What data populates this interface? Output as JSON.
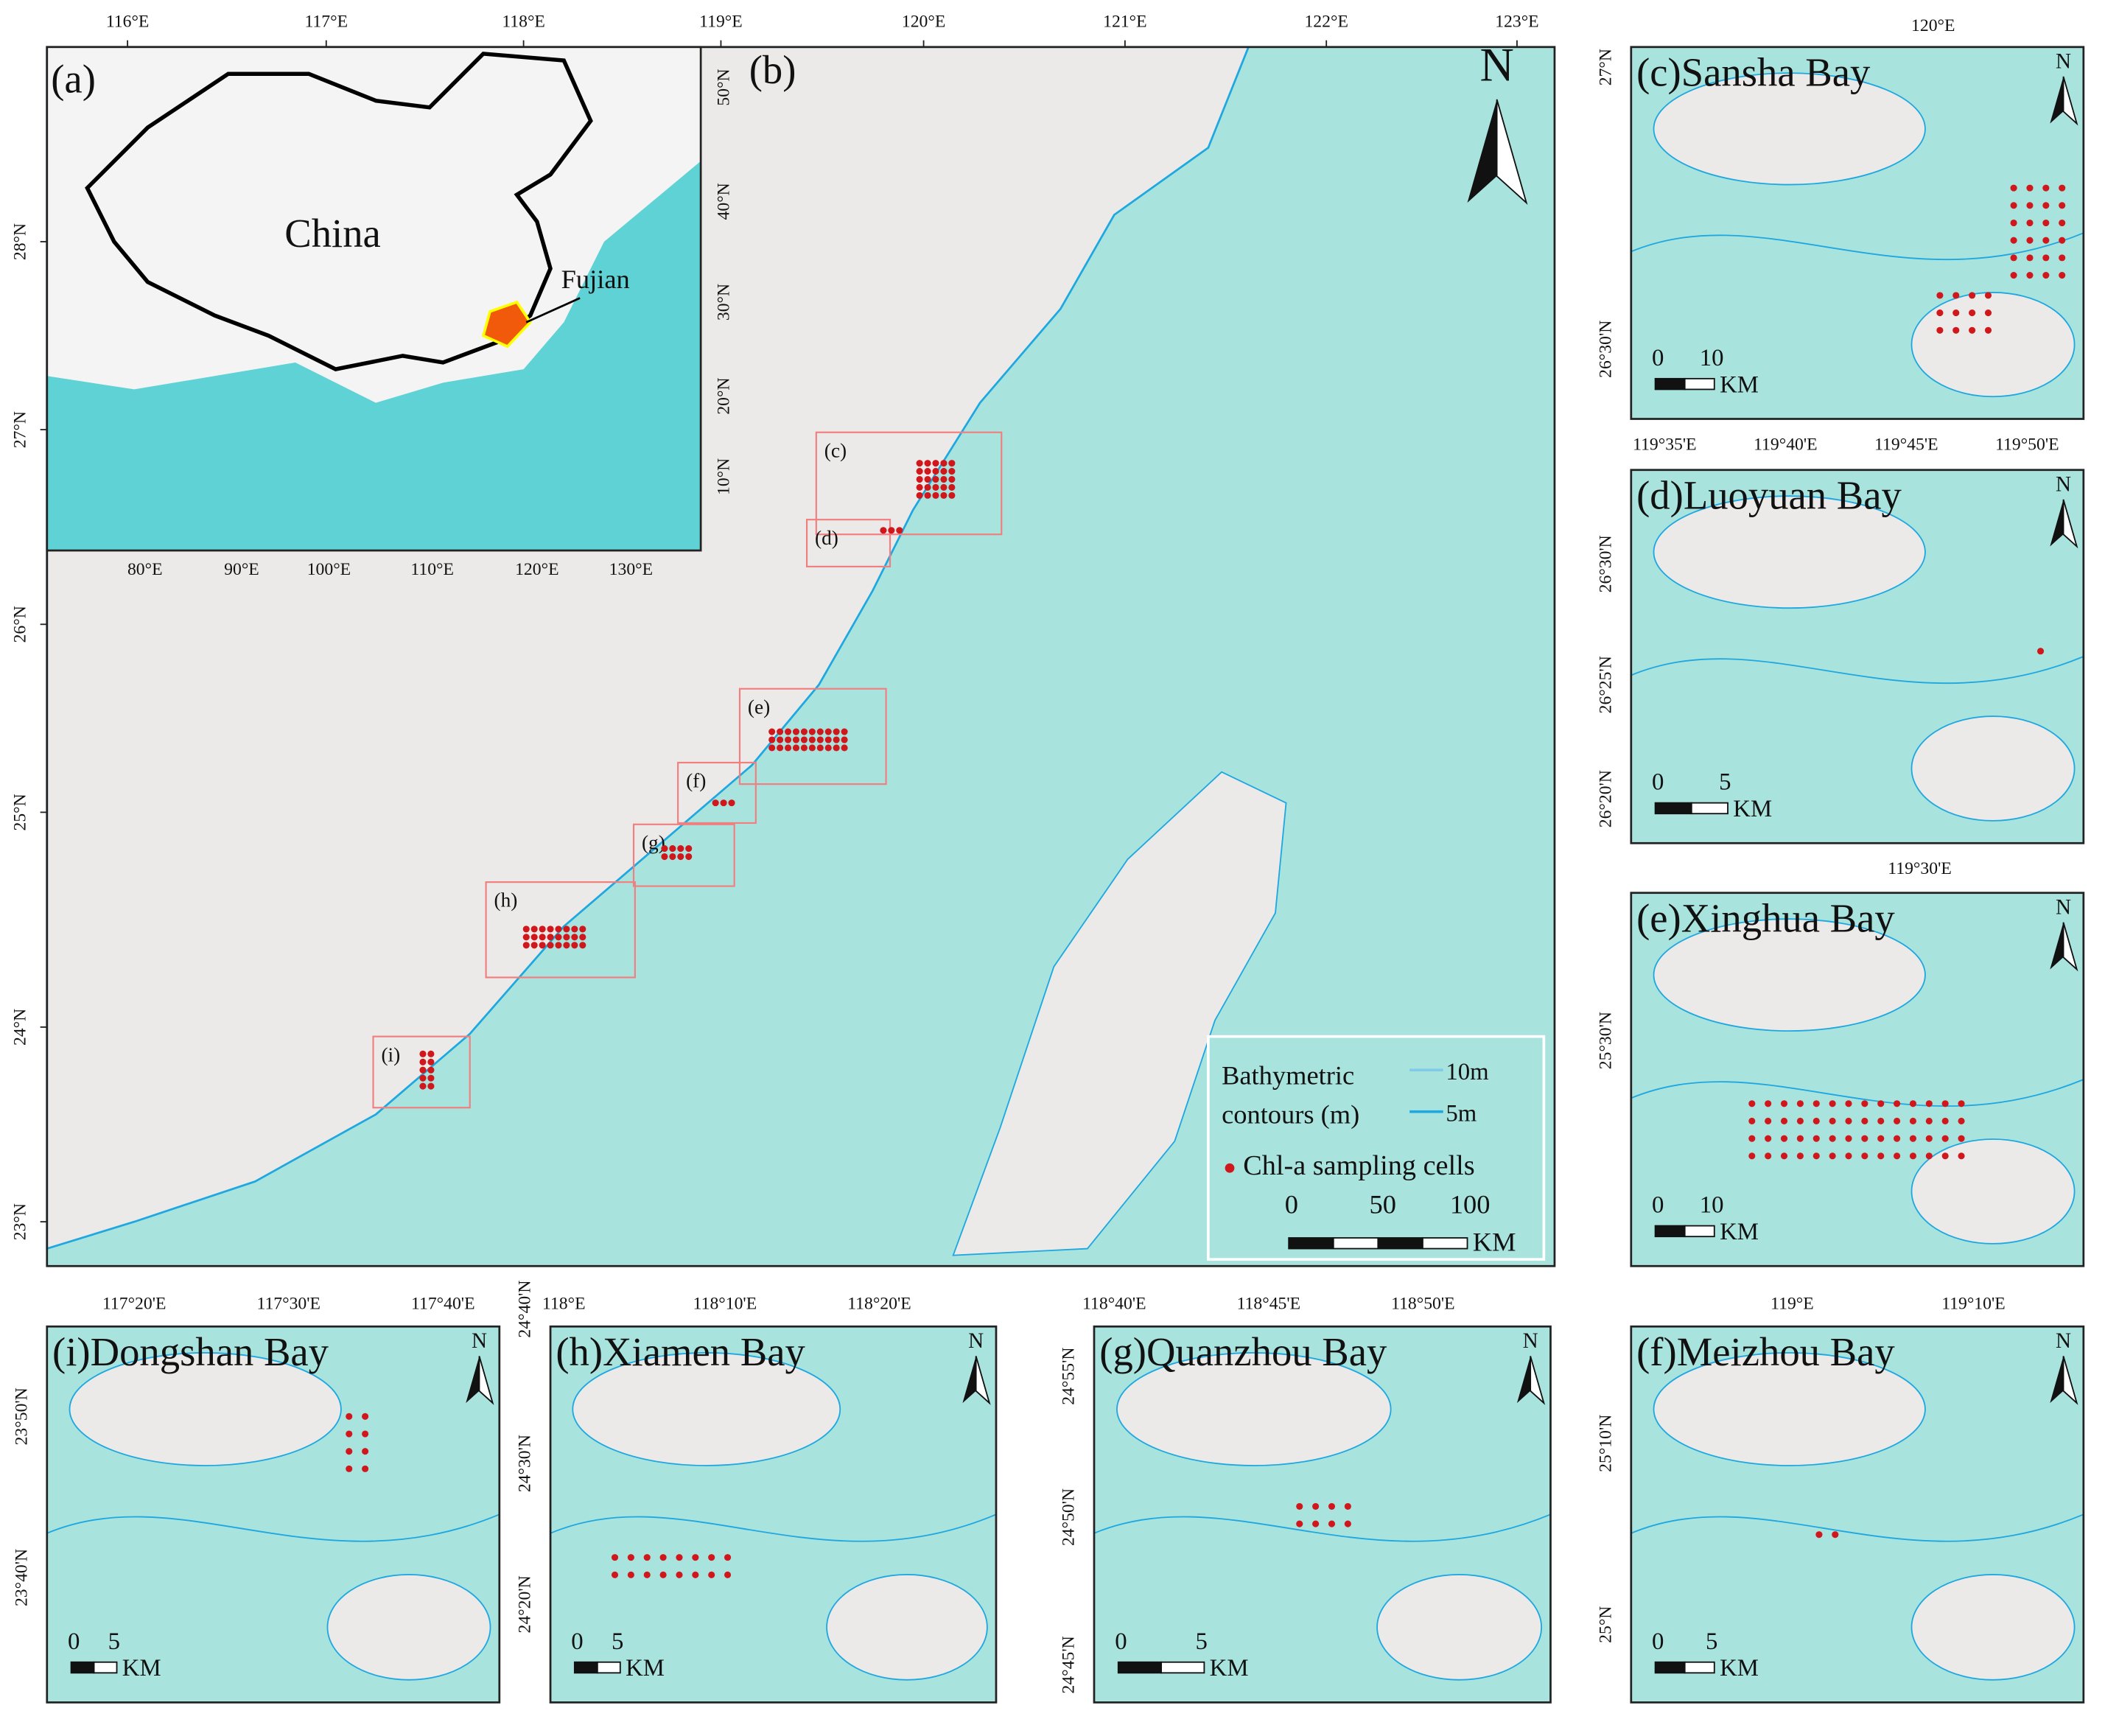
{
  "main_map": {
    "label": "(b)",
    "north": "N",
    "x_ticks": [
      "116°E",
      "117°E",
      "118°E",
      "119°E",
      "120°E",
      "121°E",
      "122°E",
      "123°E"
    ],
    "y_ticks": [
      "28°N",
      "27°N",
      "26°N",
      "25°N",
      "24°N",
      "23°N"
    ],
    "boxes": [
      "(c)",
      "(d)",
      "(e)",
      "(f)",
      "(g)",
      "(h)",
      "(i)"
    ],
    "legend": {
      "title_lines": [
        "Bathymetric",
        "contours (m)"
      ],
      "contours": [
        "10m",
        "5m"
      ],
      "points": "Chl-a sampling cells",
      "scale": [
        "0",
        "50",
        "100"
      ],
      "unit": "KM"
    }
  },
  "inset_map": {
    "label": "(a)",
    "country": "China",
    "province": "Fujian",
    "x_ticks": [
      "80°E",
      "90°E",
      "100°E",
      "110°E",
      "120°E",
      "130°E"
    ],
    "y_ticks": [
      "50°N",
      "40°N",
      "30°N",
      "20°N",
      "10°N"
    ]
  },
  "panels": [
    {
      "title": "(c)Sansha Bay",
      "x_ticks": [
        "120°E"
      ],
      "y_ticks": [
        "27°N",
        "26°30'N"
      ],
      "scale": [
        "0",
        "10"
      ],
      "unit": "KM",
      "north": "N"
    },
    {
      "title": "(d)Luoyuan Bay",
      "x_ticks": [
        "119°35'E",
        "119°40'E",
        "119°45'E",
        "119°50'E"
      ],
      "y_ticks": [
        "26°30'N",
        "26°25'N",
        "26°20'N"
      ],
      "scale": [
        "0",
        "5"
      ],
      "unit": "KM",
      "north": "N"
    },
    {
      "title": "(e)Xinghua Bay",
      "x_ticks": [
        "119°30'E"
      ],
      "y_ticks": [
        "25°30'N"
      ],
      "scale": [
        "0",
        "10"
      ],
      "unit": "KM",
      "north": "N"
    },
    {
      "title": "(i)Dongshan Bay",
      "x_ticks": [
        "117°20'E",
        "117°30'E",
        "117°40'E"
      ],
      "y_ticks": [
        "23°50'N",
        "23°40'N"
      ],
      "scale": [
        "0",
        "5"
      ],
      "unit": "KM",
      "north": "N"
    },
    {
      "title": "(h)Xiamen Bay",
      "x_ticks": [
        "118°E",
        "118°10'E",
        "118°20'E"
      ],
      "y_ticks": [
        "24°40'N",
        "24°30'N",
        "24°20'N"
      ],
      "scale": [
        "0",
        "5"
      ],
      "unit": "KM",
      "north": "N"
    },
    {
      "title": "(g)Quanzhou Bay",
      "x_ticks": [
        "118°40'E",
        "118°45'E",
        "118°50'E"
      ],
      "y_ticks": [
        "24°55'N",
        "24°50'N",
        "24°45'N"
      ],
      "scale": [
        "0",
        "5"
      ],
      "unit": "KM",
      "north": "N"
    },
    {
      "title": "(f)Meizhou Bay",
      "x_ticks": [
        "119°E",
        "119°10'E"
      ],
      "y_ticks": [
        "25°10'N",
        "25°N"
      ],
      "scale": [
        "0",
        "5"
      ],
      "unit": "KM",
      "north": "N"
    }
  ]
}
